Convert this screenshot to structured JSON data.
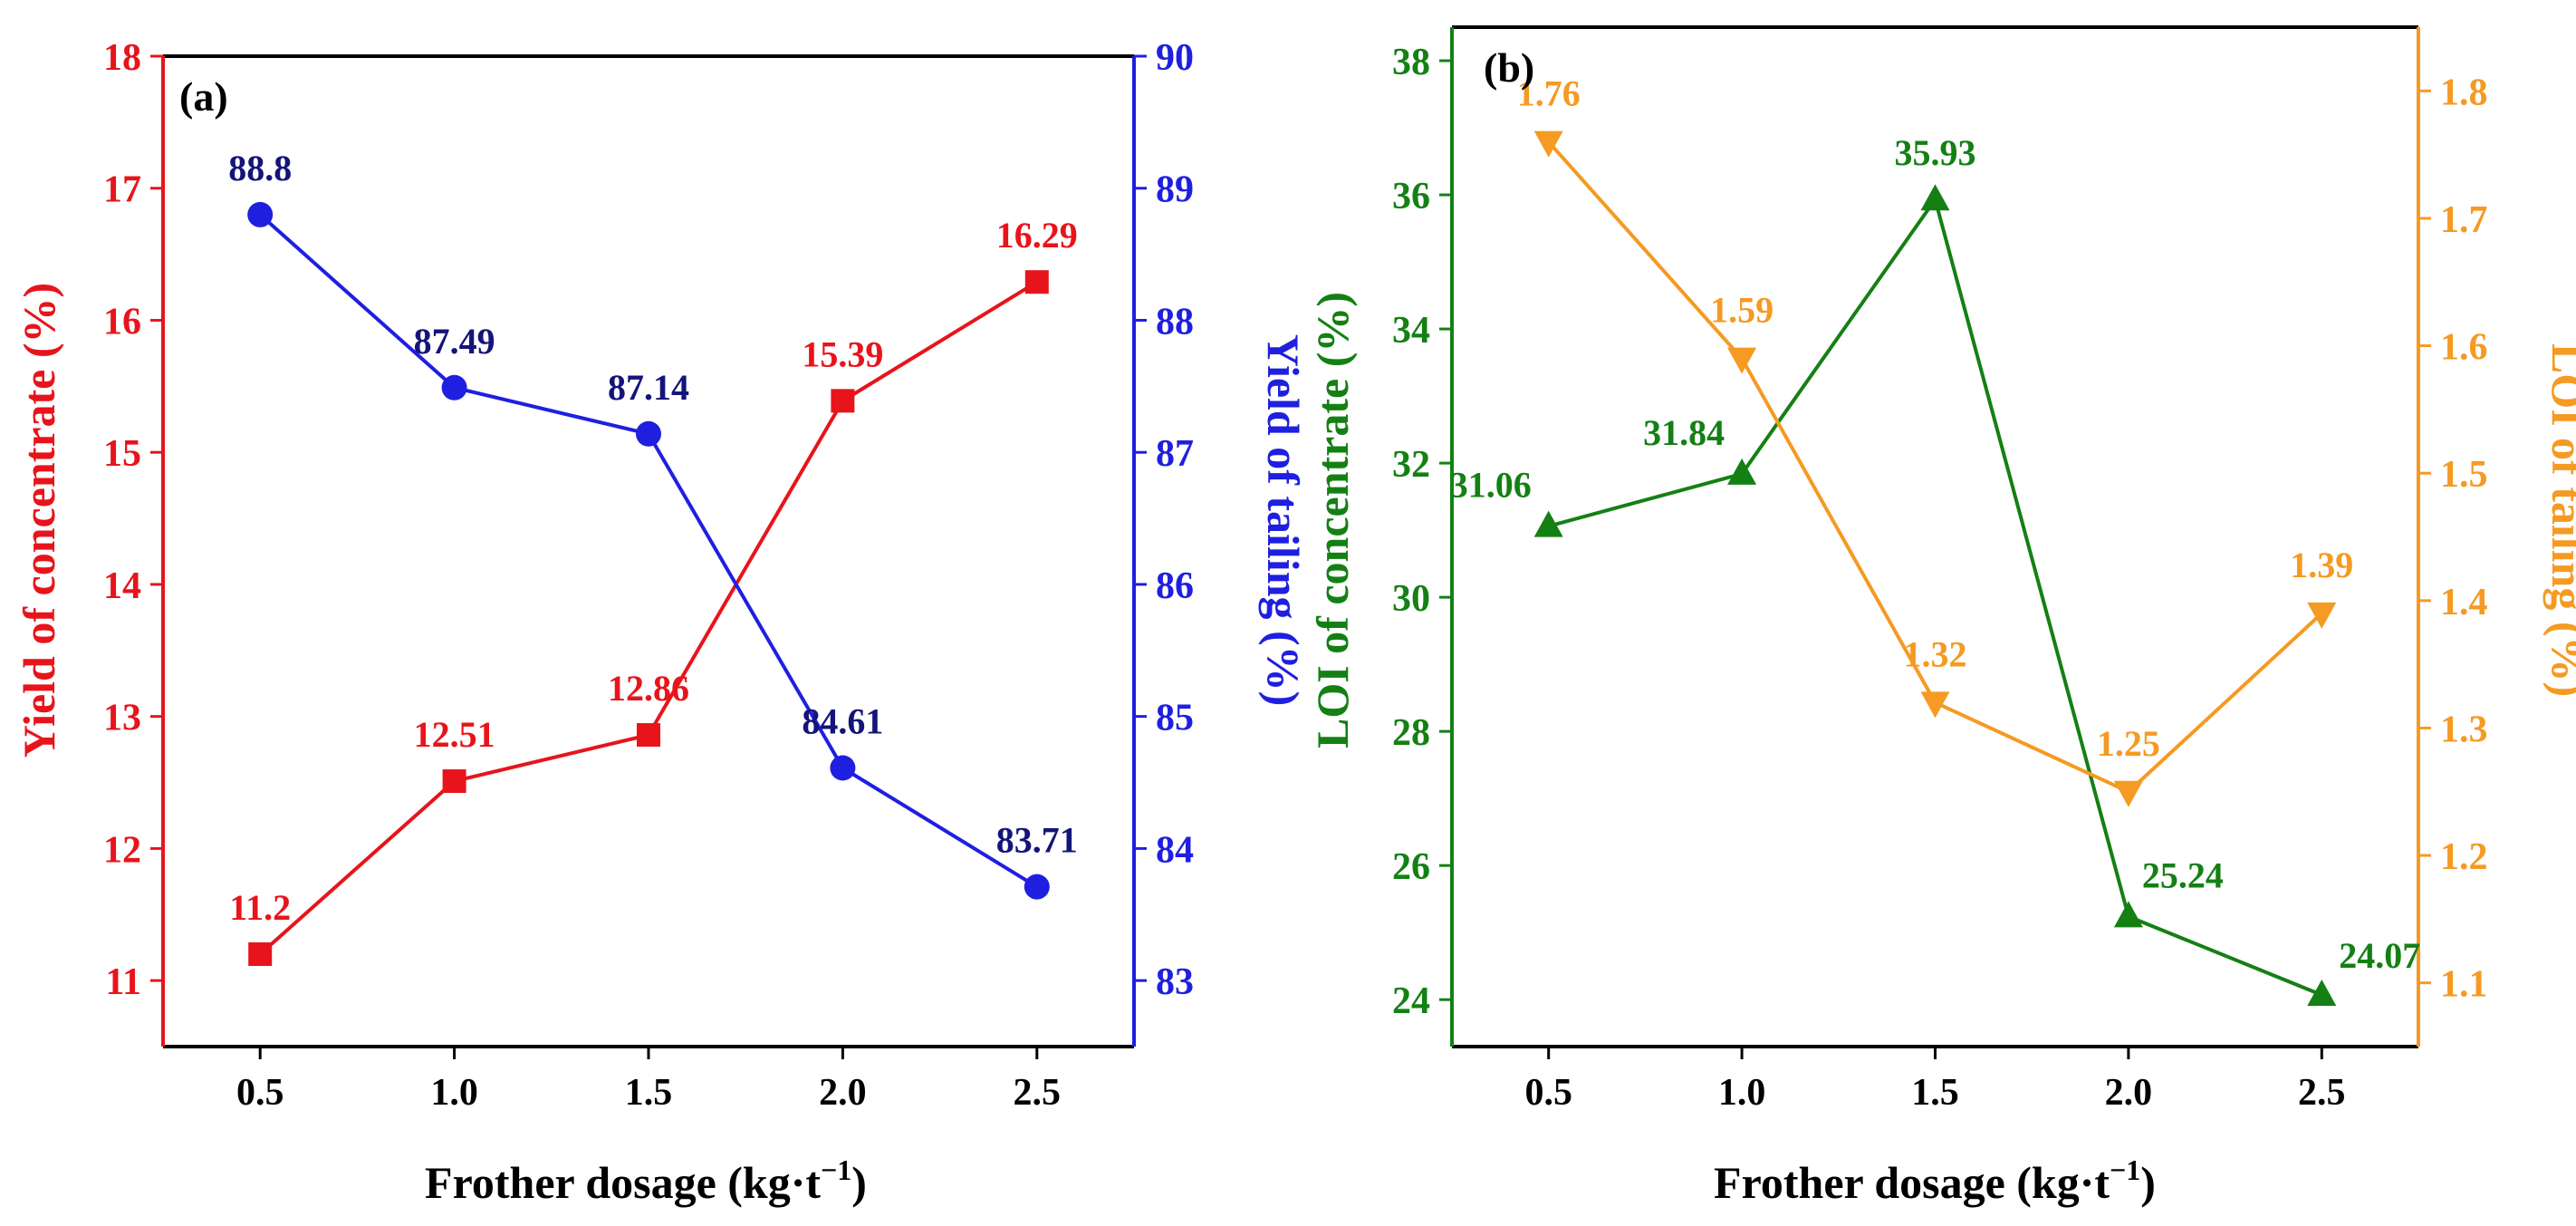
{
  "chart_data": [
    {
      "type": "line",
      "panel_label": "(a)",
      "x": [
        0.5,
        1.0,
        1.5,
        2.0,
        2.5
      ],
      "x_tick_labels": [
        "0.5",
        "1.0",
        "1.5",
        "2.0",
        "2.5"
      ],
      "xlim": [
        0.25,
        2.75
      ],
      "xlabel": "Frother dosage (kg·t",
      "xlabel_sup": "−1",
      "xlabel_close": ")",
      "left_axis": {
        "label": "Yield of  concentrate (%)",
        "color": "#e8141b",
        "ylim": [
          10.5,
          18
        ],
        "ticks": [
          11,
          12,
          13,
          14,
          15,
          16,
          17,
          18
        ],
        "tick_labels": [
          "11",
          "12",
          "13",
          "14",
          "15",
          "16",
          "17",
          "18"
        ]
      },
      "right_axis": {
        "label": "Yield of tailing (%)",
        "color": "#1f1fe0",
        "ylim": [
          82.5,
          90
        ],
        "ticks": [
          83,
          84,
          85,
          86,
          87,
          88,
          89,
          90
        ],
        "tick_labels": [
          "83",
          "84",
          "85",
          "86",
          "87",
          "88",
          "89",
          "90"
        ]
      },
      "series": [
        {
          "name": "Yield of concentrate",
          "axis": "left",
          "marker": "square",
          "color": "#e8141b",
          "label_color": "#e8141b",
          "values": [
            11.2,
            12.51,
            12.86,
            15.39,
            16.29
          ],
          "labels": [
            "11.2",
            "12.51",
            "12.86",
            "15.39",
            "16.29"
          ]
        },
        {
          "name": "Yield of tailing",
          "axis": "right",
          "marker": "circle",
          "color": "#1f1fe0",
          "label_color": "#14147a",
          "values": [
            88.8,
            87.49,
            87.14,
            84.61,
            83.71
          ],
          "labels": [
            "88.8",
            "87.49",
            "87.14",
            "84.61",
            "83.71"
          ]
        }
      ]
    },
    {
      "type": "line",
      "panel_label": "(b)",
      "x": [
        0.5,
        1.0,
        1.5,
        2.0,
        2.5
      ],
      "x_tick_labels": [
        "0.5",
        "1.0",
        "1.5",
        "2.0",
        "2.5"
      ],
      "xlim": [
        0.25,
        2.75
      ],
      "xlabel": "Frother dosage (kg·t",
      "xlabel_sup": "−1",
      "xlabel_close": ")",
      "left_axis": {
        "label": "LOI of concentrate (%)",
        "color": "#148014",
        "ylim": [
          23.3,
          38.5
        ],
        "ticks": [
          24,
          26,
          28,
          30,
          32,
          34,
          36,
          38
        ],
        "tick_labels": [
          "24",
          "26",
          "28",
          "30",
          "32",
          "34",
          "36",
          "38"
        ]
      },
      "right_axis": {
        "label": "LOI of tailing (%)",
        "color": "#f59a22",
        "ylim": [
          1.05,
          1.85
        ],
        "ticks": [
          1.1,
          1.2,
          1.3,
          1.4,
          1.5,
          1.6,
          1.7,
          1.8
        ],
        "tick_labels": [
          "1.1",
          "1.2",
          "1.3",
          "1.4",
          "1.5",
          "1.6",
          "1.7",
          "1.8"
        ]
      },
      "series": [
        {
          "name": "LOI of concentrate",
          "axis": "left",
          "marker": "triangle-up",
          "color": "#148014",
          "label_color": "#148014",
          "values": [
            31.06,
            31.84,
            35.93,
            25.24,
            24.07
          ],
          "labels": [
            "31.06",
            "31.84",
            "35.93",
            "25.24",
            "24.07"
          ]
        },
        {
          "name": "LOI of tailing",
          "axis": "right",
          "marker": "triangle-down",
          "color": "#f59a22",
          "label_color": "#f59a22",
          "values": [
            1.76,
            1.59,
            1.32,
            1.25,
            1.39
          ],
          "labels": [
            "1.76",
            "1.59",
            "1.32",
            "1.25",
            "1.39"
          ]
        }
      ]
    }
  ]
}
